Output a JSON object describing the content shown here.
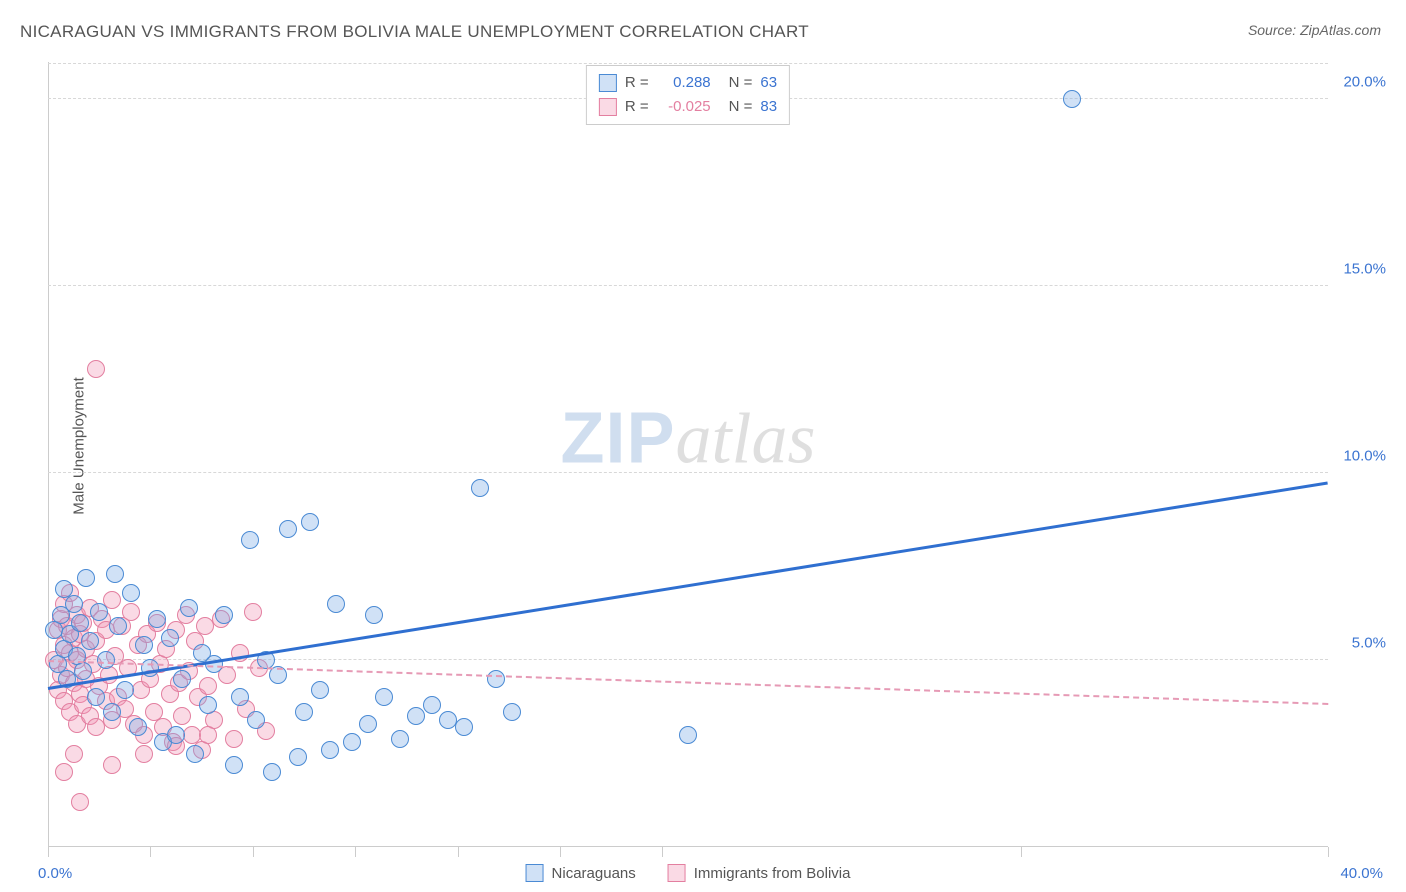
{
  "title": "NICARAGUAN VS IMMIGRANTS FROM BOLIVIA MALE UNEMPLOYMENT CORRELATION CHART",
  "source": "Source: ZipAtlas.com",
  "ylabel": "Male Unemployment",
  "watermark": {
    "part1": "ZIP",
    "part2": "atlas"
  },
  "chart": {
    "type": "scatter",
    "xlim": [
      0,
      40
    ],
    "ylim": [
      0,
      21
    ],
    "background_color": "#ffffff",
    "grid_color": "#d8d8d8",
    "axis_color": "#cccccc",
    "xtick_positions": [
      0,
      3.2,
      6.4,
      9.6,
      12.8,
      16.0,
      19.2,
      30.4,
      40
    ],
    "xtick_labels": {
      "start": "0.0%",
      "end": "40.0%"
    },
    "ytick_positions": [
      5,
      10,
      15,
      20
    ],
    "ytick_labels": [
      "5.0%",
      "10.0%",
      "15.0%",
      "20.0%"
    ],
    "ytick_color": "#3b74d1",
    "xtick_color": "#3b74d1",
    "marker_radius": 9,
    "marker_border_width": 1.5,
    "series": [
      {
        "name": "Nicaraguans",
        "fill": "rgba(120,170,230,0.35)",
        "stroke": "#4a8ad4",
        "R": "0.288",
        "N": "63",
        "trend": {
          "x1": 0,
          "y1": 4.2,
          "x2": 40,
          "y2": 9.7,
          "color": "#2f6fd0",
          "width": 3,
          "dashed": false
        },
        "points": [
          [
            0.2,
            5.8
          ],
          [
            0.3,
            4.9
          ],
          [
            0.4,
            6.2
          ],
          [
            0.5,
            5.3
          ],
          [
            0.5,
            6.9
          ],
          [
            0.6,
            4.5
          ],
          [
            0.7,
            5.7
          ],
          [
            0.8,
            6.5
          ],
          [
            0.9,
            5.1
          ],
          [
            1.0,
            6.0
          ],
          [
            1.1,
            4.7
          ],
          [
            1.2,
            7.2
          ],
          [
            1.3,
            5.5
          ],
          [
            1.5,
            4.0
          ],
          [
            1.6,
            6.3
          ],
          [
            1.8,
            5.0
          ],
          [
            2.0,
            3.6
          ],
          [
            2.1,
            7.3
          ],
          [
            2.2,
            5.9
          ],
          [
            2.4,
            4.2
          ],
          [
            2.6,
            6.8
          ],
          [
            2.8,
            3.2
          ],
          [
            3.0,
            5.4
          ],
          [
            3.2,
            4.8
          ],
          [
            3.4,
            6.1
          ],
          [
            3.6,
            2.8
          ],
          [
            3.8,
            5.6
          ],
          [
            4.0,
            3.0
          ],
          [
            4.2,
            4.5
          ],
          [
            4.4,
            6.4
          ],
          [
            4.6,
            2.5
          ],
          [
            4.8,
            5.2
          ],
          [
            5.0,
            3.8
          ],
          [
            5.2,
            4.9
          ],
          [
            5.5,
            6.2
          ],
          [
            5.8,
            2.2
          ],
          [
            6.0,
            4.0
          ],
          [
            6.3,
            8.2
          ],
          [
            6.5,
            3.4
          ],
          [
            6.8,
            5.0
          ],
          [
            7.0,
            2.0
          ],
          [
            7.2,
            4.6
          ],
          [
            7.5,
            8.5
          ],
          [
            7.8,
            2.4
          ],
          [
            8.0,
            3.6
          ],
          [
            8.2,
            8.7
          ],
          [
            8.5,
            4.2
          ],
          [
            8.8,
            2.6
          ],
          [
            9.0,
            6.5
          ],
          [
            9.5,
            2.8
          ],
          [
            10.0,
            3.3
          ],
          [
            10.2,
            6.2
          ],
          [
            10.5,
            4.0
          ],
          [
            11.0,
            2.9
          ],
          [
            11.5,
            3.5
          ],
          [
            12.0,
            3.8
          ],
          [
            12.5,
            3.4
          ],
          [
            13.0,
            3.2
          ],
          [
            13.5,
            9.6
          ],
          [
            14.0,
            4.5
          ],
          [
            14.5,
            3.6
          ],
          [
            20.0,
            3.0
          ],
          [
            32.0,
            20.0
          ]
        ]
      },
      {
        "name": "Immigrants from Bolivia",
        "fill": "rgba(240,150,180,0.35)",
        "stroke": "#e37fa0",
        "R": "-0.025",
        "N": "83",
        "trend": {
          "x1": 0,
          "y1": 4.95,
          "x2": 40,
          "y2": 3.8,
          "color": "#e69ab5",
          "width": 2,
          "dashed": true
        },
        "points": [
          [
            0.2,
            5.0
          ],
          [
            0.3,
            4.2
          ],
          [
            0.3,
            5.8
          ],
          [
            0.4,
            4.6
          ],
          [
            0.4,
            6.1
          ],
          [
            0.5,
            3.9
          ],
          [
            0.5,
            5.4
          ],
          [
            0.5,
            6.5
          ],
          [
            0.6,
            4.8
          ],
          [
            0.6,
            5.9
          ],
          [
            0.7,
            3.6
          ],
          [
            0.7,
            5.2
          ],
          [
            0.7,
            6.8
          ],
          [
            0.8,
            4.4
          ],
          [
            0.8,
            5.6
          ],
          [
            0.9,
            3.3
          ],
          [
            0.9,
            5.0
          ],
          [
            0.9,
            6.2
          ],
          [
            1.0,
            4.1
          ],
          [
            1.0,
            5.7
          ],
          [
            1.1,
            3.8
          ],
          [
            1.1,
            6.0
          ],
          [
            1.2,
            4.5
          ],
          [
            1.2,
            5.3
          ],
          [
            1.3,
            3.5
          ],
          [
            1.3,
            6.4
          ],
          [
            1.4,
            4.9
          ],
          [
            1.5,
            3.2
          ],
          [
            1.5,
            5.5
          ],
          [
            1.6,
            4.3
          ],
          [
            1.7,
            6.1
          ],
          [
            1.8,
            3.9
          ],
          [
            1.8,
            5.8
          ],
          [
            1.9,
            4.6
          ],
          [
            2.0,
            3.4
          ],
          [
            2.0,
            6.6
          ],
          [
            2.1,
            5.1
          ],
          [
            2.2,
            4.0
          ],
          [
            2.3,
            5.9
          ],
          [
            2.4,
            3.7
          ],
          [
            2.5,
            4.8
          ],
          [
            2.6,
            6.3
          ],
          [
            2.7,
            3.3
          ],
          [
            2.8,
            5.4
          ],
          [
            2.9,
            4.2
          ],
          [
            3.0,
            3.0
          ],
          [
            3.1,
            5.7
          ],
          [
            3.2,
            4.5
          ],
          [
            3.3,
            3.6
          ],
          [
            3.4,
            6.0
          ],
          [
            3.5,
            4.9
          ],
          [
            3.6,
            3.2
          ],
          [
            3.7,
            5.3
          ],
          [
            3.8,
            4.1
          ],
          [
            3.9,
            2.8
          ],
          [
            4.0,
            5.8
          ],
          [
            4.1,
            4.4
          ],
          [
            4.2,
            3.5
          ],
          [
            4.3,
            6.2
          ],
          [
            4.4,
            4.7
          ],
          [
            4.5,
            3.0
          ],
          [
            4.6,
            5.5
          ],
          [
            4.7,
            4.0
          ],
          [
            4.8,
            2.6
          ],
          [
            4.9,
            5.9
          ],
          [
            5.0,
            4.3
          ],
          [
            5.2,
            3.4
          ],
          [
            5.4,
            6.1
          ],
          [
            5.6,
            4.6
          ],
          [
            5.8,
            2.9
          ],
          [
            6.0,
            5.2
          ],
          [
            6.2,
            3.7
          ],
          [
            6.4,
            6.3
          ],
          [
            6.6,
            4.8
          ],
          [
            6.8,
            3.1
          ],
          [
            1.0,
            1.2
          ],
          [
            2.0,
            2.2
          ],
          [
            3.0,
            2.5
          ],
          [
            4.0,
            2.7
          ],
          [
            5.0,
            3.0
          ],
          [
            1.5,
            12.8
          ],
          [
            0.5,
            2.0
          ],
          [
            0.8,
            2.5
          ]
        ]
      }
    ]
  },
  "legend_top_label_R": "R =",
  "legend_top_label_N": "N =",
  "legend_bottom": [
    "Nicaraguans",
    "Immigrants from Bolivia"
  ]
}
